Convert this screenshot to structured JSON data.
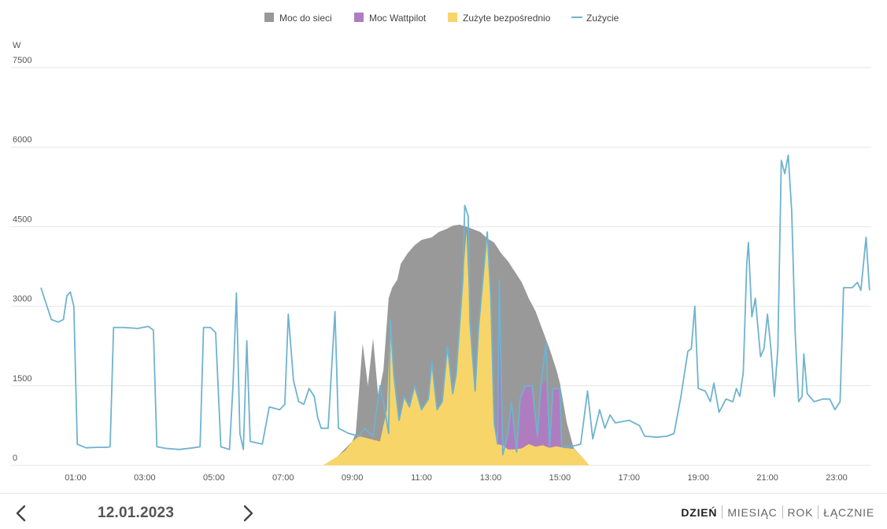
{
  "chart_data": {
    "type": "area",
    "unit_label": "W",
    "ylim": [
      0,
      7500
    ],
    "y_ticks": [
      "0",
      "1500",
      "3000",
      "4500",
      "6000",
      "7500"
    ],
    "y_tick_values": [
      0,
      1500,
      3000,
      4500,
      6000,
      7500
    ],
    "xlim_hours": [
      0,
      24
    ],
    "x_ticks": [
      "01:00",
      "03:00",
      "05:00",
      "07:00",
      "09:00",
      "11:00",
      "13:00",
      "15:00",
      "17:00",
      "19:00",
      "21:00",
      "23:00"
    ],
    "x_tick_hours": [
      1,
      3,
      5,
      7,
      9,
      11,
      13,
      15,
      17,
      19,
      21,
      23
    ],
    "grid": true,
    "legend_position": "top-center",
    "colors": {
      "grid": "#e6e6e6",
      "axis_text": "#555555",
      "grid_power": "#999999",
      "wattpilot": "#b07cc0",
      "direct": "#f8d568",
      "consumption": "#6fb3cf"
    },
    "series": [
      {
        "name": "Moc do sieci",
        "kind": "area",
        "color": "#999999",
        "note": "stacked total PV production",
        "points": [
          [
            8.15,
            0
          ],
          [
            8.5,
            120
          ],
          [
            9.0,
            450
          ],
          [
            9.1,
            600
          ],
          [
            9.3,
            2300
          ],
          [
            9.45,
            1500
          ],
          [
            9.6,
            2400
          ],
          [
            9.75,
            1300
          ],
          [
            9.9,
            1800
          ],
          [
            10.05,
            3150
          ],
          [
            10.15,
            3350
          ],
          [
            10.3,
            3500
          ],
          [
            10.4,
            3800
          ],
          [
            10.6,
            4000
          ],
          [
            10.8,
            4150
          ],
          [
            11.0,
            4250
          ],
          [
            11.3,
            4300
          ],
          [
            11.5,
            4400
          ],
          [
            11.7,
            4450
          ],
          [
            11.9,
            4520
          ],
          [
            12.1,
            4540
          ],
          [
            12.3,
            4500
          ],
          [
            12.5,
            4450
          ],
          [
            12.7,
            4400
          ],
          [
            12.9,
            4280
          ],
          [
            13.1,
            4200
          ],
          [
            13.3,
            4000
          ],
          [
            13.5,
            3850
          ],
          [
            13.7,
            3650
          ],
          [
            13.9,
            3450
          ],
          [
            14.1,
            3150
          ],
          [
            14.3,
            2900
          ],
          [
            14.5,
            2550
          ],
          [
            14.7,
            2200
          ],
          [
            14.9,
            1800
          ],
          [
            15.0,
            1550
          ],
          [
            15.2,
            800
          ],
          [
            15.4,
            320
          ],
          [
            15.65,
            150
          ],
          [
            15.85,
            0
          ]
        ]
      },
      {
        "name": "Moc Wattpilot",
        "kind": "area",
        "color": "#b07cc0",
        "note": "EV charger power, visible 13:10–15:00",
        "points": [
          [
            13.15,
            350
          ],
          [
            13.25,
            3500
          ],
          [
            13.35,
            200
          ],
          [
            13.5,
            600
          ],
          [
            13.6,
            1200
          ],
          [
            13.75,
            250
          ],
          [
            13.85,
            1250
          ],
          [
            14.0,
            1500
          ],
          [
            14.2,
            1500
          ],
          [
            14.35,
            550
          ],
          [
            14.45,
            1500
          ],
          [
            14.6,
            1600
          ],
          [
            14.7,
            350
          ],
          [
            14.8,
            1450
          ],
          [
            15.0,
            1450
          ],
          [
            15.05,
            350
          ]
        ]
      },
      {
        "name": "Zużyte bezpośrednio",
        "kind": "area",
        "color": "#f8d568",
        "note": "directly consumed PV",
        "points": [
          [
            8.15,
            0
          ],
          [
            8.5,
            140
          ],
          [
            8.8,
            280
          ],
          [
            9.0,
            450
          ],
          [
            9.2,
            550
          ],
          [
            9.5,
            500
          ],
          [
            9.8,
            450
          ],
          [
            10.0,
            1050
          ],
          [
            10.1,
            2750
          ],
          [
            10.2,
            1700
          ],
          [
            10.35,
            850
          ],
          [
            10.5,
            1300
          ],
          [
            10.65,
            1100
          ],
          [
            10.8,
            1500
          ],
          [
            11.0,
            1050
          ],
          [
            11.2,
            1250
          ],
          [
            11.3,
            1950
          ],
          [
            11.45,
            1050
          ],
          [
            11.6,
            1200
          ],
          [
            11.75,
            2250
          ],
          [
            11.9,
            1350
          ],
          [
            12.0,
            1700
          ],
          [
            12.2,
            3550
          ],
          [
            12.3,
            4400
          ],
          [
            12.4,
            2700
          ],
          [
            12.55,
            1400
          ],
          [
            12.65,
            2600
          ],
          [
            12.8,
            3700
          ],
          [
            12.9,
            4400
          ],
          [
            13.0,
            3200
          ],
          [
            13.1,
            800
          ],
          [
            13.2,
            400
          ],
          [
            13.35,
            380
          ],
          [
            13.5,
            300
          ],
          [
            13.7,
            300
          ],
          [
            13.9,
            320
          ],
          [
            14.1,
            400
          ],
          [
            14.3,
            350
          ],
          [
            14.5,
            380
          ],
          [
            14.7,
            330
          ],
          [
            14.9,
            360
          ],
          [
            15.1,
            330
          ],
          [
            15.4,
            310
          ],
          [
            15.65,
            150
          ],
          [
            15.85,
            0
          ]
        ]
      },
      {
        "name": "Zużycie",
        "kind": "line",
        "color": "#6fb3cf",
        "note": "household consumption",
        "points": [
          [
            0.0,
            3350
          ],
          [
            0.1,
            3150
          ],
          [
            0.2,
            2950
          ],
          [
            0.3,
            2750
          ],
          [
            0.5,
            2700
          ],
          [
            0.65,
            2750
          ],
          [
            0.75,
            3200
          ],
          [
            0.85,
            3270
          ],
          [
            0.95,
            3000
          ],
          [
            1.05,
            400
          ],
          [
            1.3,
            330
          ],
          [
            1.6,
            340
          ],
          [
            1.9,
            340
          ],
          [
            2.0,
            350
          ],
          [
            2.1,
            2600
          ],
          [
            2.4,
            2600
          ],
          [
            2.8,
            2580
          ],
          [
            3.1,
            2620
          ],
          [
            3.25,
            2550
          ],
          [
            3.35,
            350
          ],
          [
            3.6,
            320
          ],
          [
            4.0,
            300
          ],
          [
            4.4,
            330
          ],
          [
            4.6,
            350
          ],
          [
            4.7,
            2600
          ],
          [
            4.9,
            2600
          ],
          [
            5.05,
            2500
          ],
          [
            5.2,
            350
          ],
          [
            5.45,
            300
          ],
          [
            5.55,
            1500
          ],
          [
            5.65,
            3250
          ],
          [
            5.75,
            600
          ],
          [
            5.85,
            300
          ],
          [
            5.95,
            2350
          ],
          [
            6.05,
            450
          ],
          [
            6.4,
            400
          ],
          [
            6.6,
            1100
          ],
          [
            6.9,
            1050
          ],
          [
            7.05,
            1150
          ],
          [
            7.15,
            2850
          ],
          [
            7.3,
            1600
          ],
          [
            7.45,
            1200
          ],
          [
            7.6,
            1150
          ],
          [
            7.75,
            1450
          ],
          [
            7.9,
            1300
          ],
          [
            8.0,
            900
          ],
          [
            8.1,
            700
          ],
          [
            8.3,
            700
          ],
          [
            8.5,
            2900
          ],
          [
            8.6,
            700
          ],
          [
            8.9,
            600
          ],
          [
            9.2,
            550
          ],
          [
            9.35,
            700
          ],
          [
            9.6,
            550
          ],
          [
            9.8,
            1500
          ],
          [
            9.95,
            1000
          ],
          [
            10.05,
            600
          ],
          [
            10.1,
            2750
          ],
          [
            10.2,
            1700
          ],
          [
            10.35,
            850
          ],
          [
            10.5,
            1300
          ],
          [
            10.65,
            1100
          ],
          [
            10.8,
            1500
          ],
          [
            11.0,
            1050
          ],
          [
            11.2,
            1250
          ],
          [
            11.3,
            1950
          ],
          [
            11.45,
            1050
          ],
          [
            11.6,
            1200
          ],
          [
            11.75,
            2250
          ],
          [
            11.9,
            1350
          ],
          [
            12.0,
            1700
          ],
          [
            12.2,
            3550
          ],
          [
            12.25,
            4900
          ],
          [
            12.35,
            4700
          ],
          [
            12.4,
            2700
          ],
          [
            12.55,
            1400
          ],
          [
            12.65,
            2600
          ],
          [
            12.8,
            3700
          ],
          [
            12.9,
            4400
          ],
          [
            13.0,
            3200
          ],
          [
            13.1,
            800
          ],
          [
            13.2,
            400
          ],
          [
            13.25,
            3500
          ],
          [
            13.35,
            200
          ],
          [
            13.5,
            600
          ],
          [
            13.6,
            1200
          ],
          [
            13.75,
            250
          ],
          [
            13.85,
            1250
          ],
          [
            14.0,
            1500
          ],
          [
            14.2,
            1500
          ],
          [
            14.35,
            550
          ],
          [
            14.45,
            1500
          ],
          [
            14.6,
            2300
          ],
          [
            14.7,
            350
          ],
          [
            14.8,
            1450
          ],
          [
            15.0,
            1450
          ],
          [
            15.05,
            350
          ],
          [
            15.3,
            350
          ],
          [
            15.6,
            400
          ],
          [
            15.8,
            1400
          ],
          [
            15.95,
            500
          ],
          [
            16.15,
            1050
          ],
          [
            16.3,
            700
          ],
          [
            16.45,
            950
          ],
          [
            16.6,
            800
          ],
          [
            17.0,
            850
          ],
          [
            17.3,
            750
          ],
          [
            17.45,
            550
          ],
          [
            17.8,
            530
          ],
          [
            18.1,
            550
          ],
          [
            18.3,
            600
          ],
          [
            18.5,
            1300
          ],
          [
            18.7,
            2150
          ],
          [
            18.8,
            2200
          ],
          [
            18.9,
            3000
          ],
          [
            19.0,
            1450
          ],
          [
            19.2,
            1400
          ],
          [
            19.35,
            1200
          ],
          [
            19.45,
            1550
          ],
          [
            19.6,
            1000
          ],
          [
            19.8,
            1250
          ],
          [
            20.0,
            1200
          ],
          [
            20.1,
            1450
          ],
          [
            20.2,
            1300
          ],
          [
            20.3,
            1750
          ],
          [
            20.4,
            3800
          ],
          [
            20.45,
            4200
          ],
          [
            20.55,
            2800
          ],
          [
            20.65,
            3150
          ],
          [
            20.8,
            2050
          ],
          [
            20.9,
            2200
          ],
          [
            21.0,
            2850
          ],
          [
            21.1,
            2200
          ],
          [
            21.2,
            1300
          ],
          [
            21.3,
            2200
          ],
          [
            21.4,
            5750
          ],
          [
            21.5,
            5500
          ],
          [
            21.6,
            5850
          ],
          [
            21.7,
            4800
          ],
          [
            21.8,
            2500
          ],
          [
            21.9,
            1200
          ],
          [
            22.0,
            1300
          ],
          [
            22.05,
            2100
          ],
          [
            22.15,
            1350
          ],
          [
            22.35,
            1200
          ],
          [
            22.6,
            1250
          ],
          [
            22.8,
            1250
          ],
          [
            22.95,
            1050
          ],
          [
            23.1,
            1200
          ],
          [
            23.2,
            3350
          ],
          [
            23.45,
            3350
          ],
          [
            23.6,
            3450
          ],
          [
            23.7,
            3300
          ],
          [
            23.85,
            4300
          ],
          [
            23.95,
            3300
          ]
        ]
      }
    ]
  },
  "footer": {
    "date": "12.01.2023",
    "tabs": [
      {
        "label": "DZIEŃ",
        "active": true
      },
      {
        "label": "MIESIĄC",
        "active": false
      },
      {
        "label": "ROK",
        "active": false
      },
      {
        "label": "ŁĄCZNIE",
        "active": false
      }
    ]
  }
}
